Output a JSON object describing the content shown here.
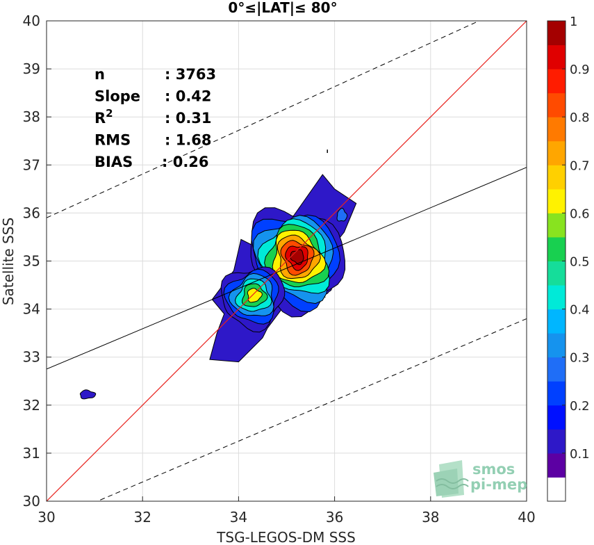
{
  "chart_data": {
    "type": "heatmap",
    "title": "0°≤|LAT|≤ 80°",
    "xlabel": "TSG-LEGOS-DM SSS",
    "ylabel": "Satellite SSS",
    "xlim": [
      30,
      40
    ],
    "ylim": [
      30,
      40
    ],
    "xticks": [
      "30",
      "32",
      "34",
      "36",
      "38",
      "40"
    ],
    "yticks": [
      "30",
      "31",
      "32",
      "33",
      "34",
      "35",
      "36",
      "37",
      "38",
      "39",
      "40"
    ],
    "grid": true,
    "stats": [
      {
        "label": "n",
        "value": ": 3763"
      },
      {
        "label": "Slope",
        "value": ": 0.42"
      },
      {
        "label": "R",
        "sup": "2",
        "value": ": 0.31"
      },
      {
        "label": "RMS",
        "value": ": 1.68"
      },
      {
        "label": "BIAS",
        "value": ": 0.26"
      }
    ],
    "lines": {
      "identity": {
        "color": "#e8211c",
        "points": [
          [
            30,
            30
          ],
          [
            40,
            40
          ]
        ]
      },
      "fit": {
        "color": "#000000",
        "points": [
          [
            30,
            32.75
          ],
          [
            40,
            36.95
          ]
        ]
      },
      "bound_upper": {
        "style": "dashed",
        "points": [
          [
            30,
            35.9
          ],
          [
            40,
            40.45
          ]
        ]
      },
      "bound_lower": {
        "style": "dashed",
        "points": [
          [
            30,
            29.55
          ],
          [
            40,
            33.8
          ]
        ]
      }
    },
    "density_peaks": [
      {
        "x": 35.2,
        "y": 35.05,
        "max": 1.0
      },
      {
        "x": 34.3,
        "y": 34.25,
        "max": 0.55
      }
    ],
    "colorbar": {
      "ticks": [
        "0.1",
        "0.2",
        "0.3",
        "0.4",
        "0.5",
        "0.6",
        "0.7",
        "0.8",
        "0.9",
        "1"
      ],
      "colors": [
        "#ffffff",
        "#5c00a3",
        "#2e18c8",
        "#0010ff",
        "#0040ff",
        "#1f6ef7",
        "#1593ee",
        "#00b6ff",
        "#00ead8",
        "#15dd9a",
        "#18d050",
        "#88e31f",
        "#fff200",
        "#ffd000",
        "#ffa600",
        "#ff7a00",
        "#ff4b00",
        "#ff1c00",
        "#e00000",
        "#a40000"
      ]
    }
  },
  "logo": {
    "line1": "smos",
    "line2": "pi-mep"
  }
}
